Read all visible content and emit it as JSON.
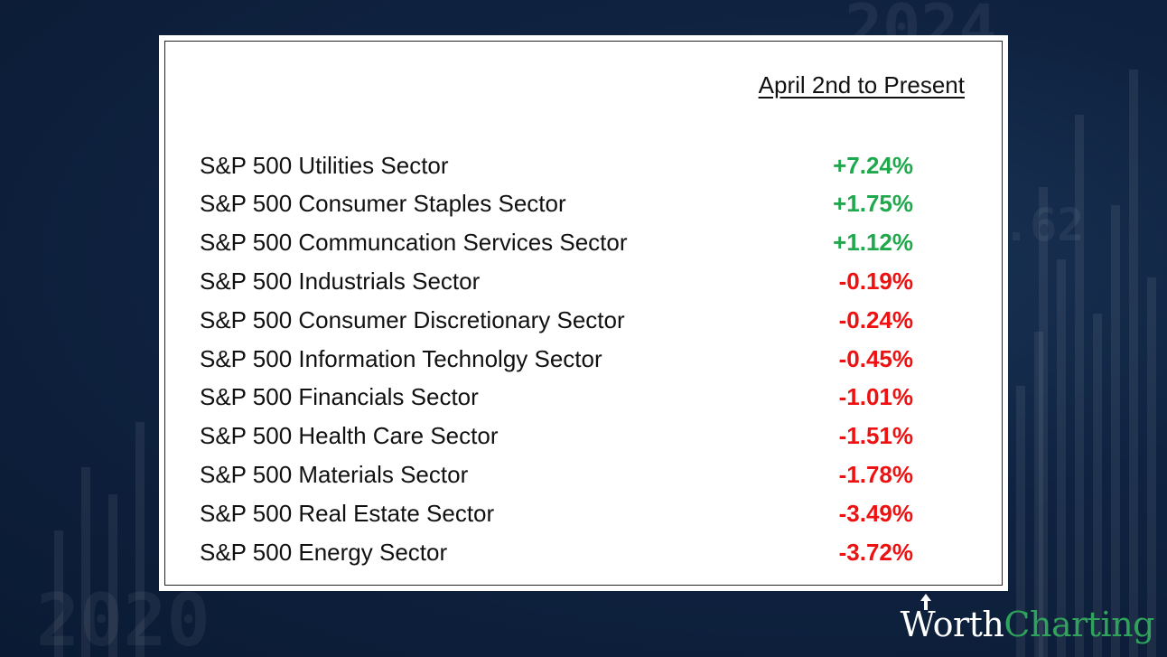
{
  "table": {
    "column_header": "April 2nd to Present",
    "rows": [
      {
        "label": "S&P 500 Utilities Sector",
        "value": "+7.24%",
        "sign": "pos"
      },
      {
        "label": "S&P 500 Consumer Staples Sector",
        "value": "+1.75%",
        "sign": "pos"
      },
      {
        "label": "S&P 500 Communcation Services Sector",
        "value": "+1.12%",
        "sign": "pos"
      },
      {
        "label": "S&P 500 Industrials Sector",
        "value": "-0.19%",
        "sign": "neg"
      },
      {
        "label": "S&P 500 Consumer Discretionary Sector",
        "value": "-0.24%",
        "sign": "neg"
      },
      {
        "label": "S&P 500 Information Technolgy Sector",
        "value": "-0.45%",
        "sign": "neg"
      },
      {
        "label": "S&P 500 Financials Sector",
        "value": "-1.01%",
        "sign": "neg"
      },
      {
        "label": "S&P 500 Health Care Sector",
        "value": "-1.51%",
        "sign": "neg"
      },
      {
        "label": "S&P 500 Materials Sector",
        "value": "-1.78%",
        "sign": "neg"
      },
      {
        "label": "S&P 500 Real Estate Sector",
        "value": "-3.49%",
        "sign": "neg"
      },
      {
        "label": "S&P 500 Energy Sector",
        "value": "-3.72%",
        "sign": "neg"
      }
    ]
  },
  "chart_data": {
    "type": "table",
    "title": "",
    "columns": [
      "",
      "April 2nd to Present"
    ],
    "categories": [
      "S&P 500 Utilities Sector",
      "S&P 500 Consumer Staples Sector",
      "S&P 500 Communcation Services Sector",
      "S&P 500 Industrials Sector",
      "S&P 500 Consumer Discretionary Sector",
      "S&P 500 Information Technolgy Sector",
      "S&P 500 Financials Sector",
      "S&P 500 Health Care Sector",
      "S&P 500 Materials Sector",
      "S&P 500 Real Estate Sector",
      "S&P 500 Energy Sector"
    ],
    "values": [
      7.24,
      1.75,
      1.12,
      -0.19,
      -0.24,
      -0.45,
      -1.01,
      -1.51,
      -1.78,
      -3.49,
      -3.72
    ],
    "unit": "%"
  },
  "brand": {
    "word1": "Worth",
    "word2": "Charting",
    "colors": {
      "word1": "#ffffff",
      "word2": "#2fa35c",
      "arrow": "#ffffff"
    }
  },
  "background": {
    "decor_text_1": "2024",
    "decor_text_2": ".62",
    "decor_text_3": "2020",
    "color": "#0f2341"
  },
  "colors": {
    "positive": "#1fa84c",
    "negative": "#ee1111",
    "panel": "#ffffff"
  }
}
